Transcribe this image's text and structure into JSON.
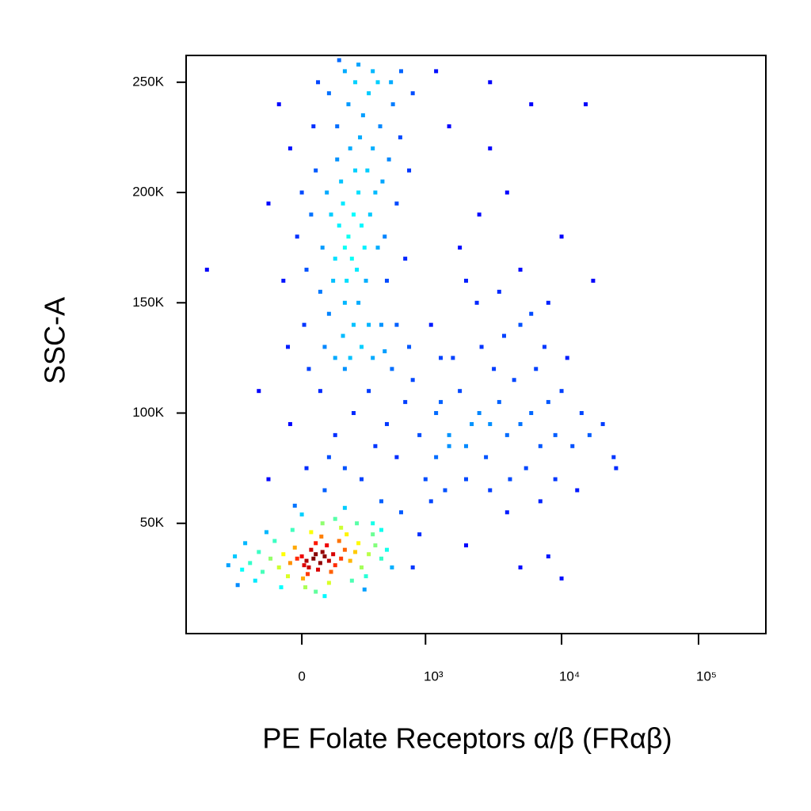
{
  "chart_data": {
    "type": "scatter",
    "x_label": "PE Folate Receptors α/β (FRαβ)",
    "y_label": "SSC-A",
    "xscale": {
      "type": "asinh",
      "cofactor": 254
    },
    "xlim": [
      -870,
      310000
    ],
    "ylim": [
      0,
      262144
    ],
    "xticks": [
      0,
      {
        "value": 1000,
        "label": "10³"
      },
      {
        "value": 10000,
        "label": "10⁴"
      },
      {
        "value": 100000,
        "label": "10⁵"
      }
    ],
    "yticks": [
      {
        "value": 50000,
        "label": "50K"
      },
      {
        "value": 100000,
        "label": "100K"
      },
      {
        "value": 150000,
        "label": "150K"
      },
      {
        "value": 200000,
        "label": "200K"
      },
      {
        "value": 250000,
        "label": "250K"
      }
    ],
    "colormap": "jet",
    "x": [
      20,
      50,
      80,
      10,
      60,
      100,
      30,
      -20,
      120,
      40,
      70,
      90,
      0,
      150,
      -50,
      110,
      25,
      140,
      -80,
      60,
      180,
      -100,
      200,
      5,
      130,
      -30,
      85,
      230,
      -140,
      170,
      -60,
      260,
      40,
      -200,
      120,
      300,
      -180,
      210,
      15,
      350,
      -250,
      90,
      -120,
      280,
      60,
      400,
      -300,
      180,
      -40,
      330,
      -350,
      240,
      -220,
      150,
      450,
      -160,
      0,
      380,
      -400,
      100,
      500,
      -280,
      270,
      -90,
      550,
      320,
      -30,
      200,
      450,
      -330,
      220,
      250,
      200,
      280,
      240,
      190,
      260,
      300,
      210,
      230,
      170,
      320,
      270,
      180,
      340,
      150,
      290,
      200,
      360,
      160,
      250,
      310,
      130,
      380,
      140,
      220,
      280,
      110,
      400,
      190,
      260,
      90,
      420,
      120,
      350,
      60,
      330,
      160,
      440,
      80,
      300,
      200,
      40,
      460,
      100,
      380,
      20,
      480,
      150,
      420,
      50,
      350,
      0,
      520,
      230,
      120,
      560,
      -20,
      500,
      70,
      600,
      10,
      450,
      280,
      -50,
      640,
      170,
      540,
      -80,
      380,
      30,
      700,
      -100,
      650,
      -60,
      480,
      750,
      -150,
      800,
      600,
      100,
      200,
      300,
      150,
      400,
      250,
      500,
      350,
      600,
      80,
      700,
      450,
      900,
      120,
      550,
      1000,
      -50,
      800,
      650,
      1200,
      20,
      1500,
      380,
      -150,
      1100,
      200,
      750,
      1300,
      -200,
      900,
      3000,
      2500,
      4000,
      2000,
      3500,
      5000,
      2800,
      1800,
      6000,
      4500,
      2200,
      3200,
      7000,
      1500,
      5500,
      2600,
      8000,
      4200,
      1300,
      3800,
      9000,
      2000,
      6500,
      1600,
      10000,
      3000,
      5000,
      12000,
      1200,
      7500,
      2400,
      14000,
      4000,
      1100,
      9000,
      6000,
      16000,
      2000,
      3500,
      11000,
      7000,
      1400,
      20000,
      5000,
      8000,
      1800,
      13000,
      2500,
      4000,
      24000,
      3000,
      6000,
      1500,
      10000,
      15000,
      800,
      2000,
      5000,
      10000,
      17000,
      25000,
      1200,
      8000,
      -600,
      3000
    ],
    "values": [
      33000,
      34000,
      32000,
      31000,
      36000,
      35000,
      30000,
      34000,
      33000,
      38000,
      29000,
      37000,
      35000,
      31000,
      32000,
      40000,
      27000,
      36000,
      36000,
      41000,
      34000,
      30000,
      38000,
      25000,
      28000,
      39000,
      44000,
      33000,
      34000,
      42000,
      26000,
      37000,
      46000,
      37000,
      23000,
      30000,
      28000,
      45000,
      21000,
      36000,
      32000,
      50000,
      42000,
      41000,
      19000,
      40000,
      29000,
      48000,
      47000,
      26000,
      35000,
      24000,
      24000,
      52000,
      34000,
      46000,
      54000,
      45000,
      31000,
      17000,
      38000,
      41000,
      50000,
      21000,
      30000,
      20000,
      58000,
      57000,
      47000,
      22000,
      180000,
      190000,
      175000,
      200000,
      170000,
      195000,
      210000,
      185000,
      160000,
      220000,
      185000,
      175000,
      165000,
      205000,
      210000,
      170000,
      225000,
      150000,
      190000,
      215000,
      140000,
      235000,
      190000,
      220000,
      160000,
      240000,
      150000,
      200000,
      200000,
      135000,
      250000,
      175000,
      175000,
      145000,
      245000,
      210000,
      160000,
      230000,
      230000,
      155000,
      130000,
      255000,
      190000,
      205000,
      130000,
      255000,
      165000,
      180000,
      125000,
      250000,
      230000,
      140000,
      200000,
      215000,
      125000,
      245000,
      240000,
      180000,
      160000,
      250000,
      195000,
      140000,
      140000,
      258000,
      220000,
      225000,
      260000,
      250000,
      160000,
      125000,
      120000,
      170000,
      240000,
      255000,
      130000,
      128000,
      210000,
      195000,
      245000,
      140000,
      65000,
      75000,
      70000,
      90000,
      85000,
      100000,
      95000,
      110000,
      80000,
      110000,
      105000,
      60000,
      90000,
      80000,
      120000,
      70000,
      95000,
      115000,
      55000,
      100000,
      75000,
      85000,
      50000,
      70000,
      60000,
      120000,
      130000,
      125000,
      110000,
      45000,
      95000,
      100000,
      90000,
      85000,
      105000,
      95000,
      80000,
      110000,
      100000,
      115000,
      95000,
      120000,
      85000,
      90000,
      75000,
      130000,
      105000,
      70000,
      105000,
      135000,
      90000,
      70000,
      120000,
      125000,
      110000,
      65000,
      140000,
      85000,
      80000,
      130000,
      150000,
      100000,
      55000,
      140000,
      70000,
      145000,
      90000,
      160000,
      155000,
      125000,
      60000,
      65000,
      95000,
      165000,
      150000,
      175000,
      65000,
      190000,
      200000,
      80000,
      220000,
      240000,
      230000,
      180000,
      240000,
      30000,
      40000,
      30000,
      25000,
      160000,
      75000,
      255000,
      35000,
      165000,
      250000
    ]
  }
}
